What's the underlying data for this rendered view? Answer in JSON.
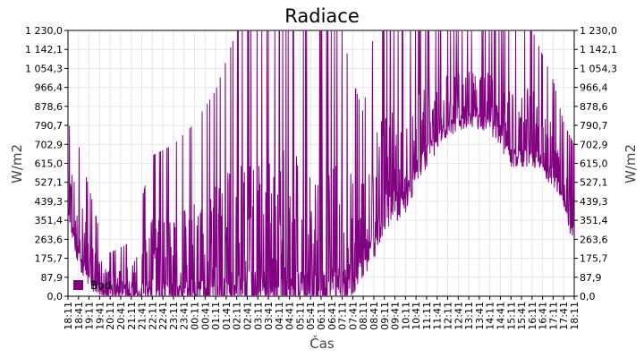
{
  "chart_data": {
    "type": "line",
    "title": "Radiace",
    "xlabel": "Čas",
    "ylabel": "W/m2",
    "ylabel_right": "W/m2",
    "ylim": [
      0,
      1230
    ],
    "yticks": [
      "0,0",
      "87,9",
      "175,7",
      "263,6",
      "351,4",
      "439,3",
      "527,1",
      "615,0",
      "702,9",
      "790,7",
      "878,6",
      "966,4",
      "1 054,3",
      "1 142,1",
      "1 230,0"
    ],
    "xticks": [
      "18:11",
      "18:41",
      "19:11",
      "19:41",
      "20:11",
      "20:41",
      "21:11",
      "21:41",
      "22:11",
      "22:41",
      "23:11",
      "23:41",
      "00:11",
      "00:41",
      "01:11",
      "01:41",
      "02:11",
      "02:41",
      "03:11",
      "03:41",
      "04:11",
      "04:41",
      "05:11",
      "05:41",
      "06:11",
      "06:41",
      "07:11",
      "07:41",
      "08:11",
      "08:41",
      "09:11",
      "09:41",
      "10:11",
      "10:41",
      "11:11",
      "11:41",
      "12:11",
      "12:41",
      "13:11",
      "13:41",
      "14:11",
      "14:41",
      "15:11",
      "15:41",
      "16:11",
      "16:41",
      "17:11",
      "17:41",
      "18:11"
    ],
    "grid": true,
    "legend_placement": "bottom-left",
    "series": [
      {
        "name": "Bod",
        "color": "#800080",
        "profile": {
          "x_index": [
            0,
            1,
            2,
            3,
            4,
            6,
            8,
            10,
            12,
            14,
            16,
            18,
            20,
            22,
            24,
            26,
            27,
            28,
            29,
            30,
            32,
            34,
            36,
            38,
            40,
            42,
            44,
            46,
            47,
            48
          ],
          "baseline": [
            400,
            180,
            80,
            20,
            5,
            5,
            5,
            10,
            10,
            10,
            10,
            10,
            10,
            10,
            10,
            30,
            80,
            150,
            250,
            380,
            450,
            650,
            780,
            820,
            800,
            650,
            650,
            550,
            450,
            250
          ],
          "peak": [
            800,
            700,
            500,
            300,
            200,
            250,
            650,
            700,
            800,
            950,
            1230,
            1230,
            1230,
            1230,
            1230,
            1230,
            1000,
            850,
            1230,
            1230,
            1230,
            1230,
            1230,
            1230,
            1230,
            1230,
            1230,
            1000,
            800,
            700
          ]
        }
      }
    ]
  }
}
